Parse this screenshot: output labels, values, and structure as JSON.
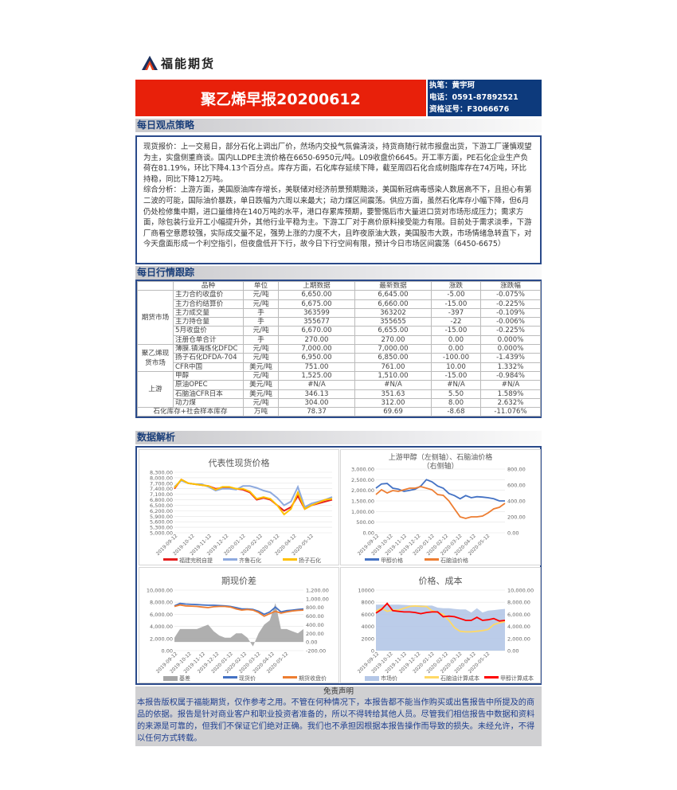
{
  "header": {
    "brand": "福能期货",
    "title": "聚乙烯早报20200612",
    "author": "执笔：黄宇珂",
    "phone": "电话：0591-87892521",
    "license": "资格证号：F3066676"
  },
  "strategy": {
    "heading": "每日观点策略",
    "paragraphs": [
      "现货报价：上一交易日，部分石化上调出厂价，然场内交投气氛偏清淡，持货商随行就市报盘出货，下游工厂谨慎观望为主，实盘侧重商谈。国内LLDPE主流价格在6650-6950元/吨。L09收盘价6645。开工率方面，PE石化企业生产负荷在81.19%，环比下降4.13个百分点。库存方面，石化库存延续下降，截至周四石化合成树脂库存在74万吨，环比持稳，同比下降12万吨。",
      "综合分析：上游方面，美国原油库存增长，美联储对经济前景预期黯淡，美国新冠病毒感染人数居高不下，且担心有第二波的可能，国际油价暴跌，单日跌幅为六周以来最大；动力煤区间震荡。供应方面，虽然石化库存小幅下降，但6月仍处检修集中期，进口量维持在140万吨的水平，港口存累库预期，要警惕后市大量进口货对市场形成压力；需求方面，除包装行业开工小幅提升外，其他行业平稳为主。下游工厂对于高价原料接受能力有限。目前处于需求淡季，下游厂商看空意愿较强，实际成交量不足，强势上涨的力度不大，且昨夜原油大跌，美国股市大跌，市场情绪急转直下，对今天盘面形成一个利空指引，但夜盘低开下行，故今日下行空间有限，预计今日市场区间震荡（6450-6675）"
    ]
  },
  "market": {
    "heading": "每日行情跟踪",
    "columns": [
      "品种",
      "单位",
      "上期数据",
      "最新数据",
      "涨跌",
      "涨跌幅"
    ],
    "groups": [
      {
        "name": "期货市场",
        "rows": [
          [
            "主力合约收盘价",
            "元/吨",
            "6,650.00",
            "6,645.00",
            "-5.00",
            "-0.075%"
          ],
          [
            "主力合约结算价",
            "元/吨",
            "6,675.00",
            "6,660.00",
            "-15.00",
            "-0.225%"
          ],
          [
            "主力成交量",
            "手",
            "363599",
            "363202",
            "-397",
            "-0.109%"
          ],
          [
            "主力持仓量",
            "手",
            "355677",
            "355655",
            "-22",
            "-0.006%"
          ],
          [
            "5月收盘价",
            "元/吨",
            "6,670.00",
            "6,655.00",
            "-15.00",
            "-0.225%"
          ],
          [
            "注册仓单合计",
            "手",
            "270.00",
            "270.00",
            "0.00",
            "0.000%"
          ]
        ]
      },
      {
        "name": "聚乙烯现货市场",
        "rows": [
          [
            "薄膜.镇海炼化DFDC",
            "元/吨",
            "7,000.00",
            "7,000.00",
            "0.00",
            "0.000%"
          ],
          [
            "扬子石化DFDA-704",
            "元/吨",
            "6,950.00",
            "6,850.00",
            "-100.00",
            "-1.439%"
          ],
          [
            "CFR中国",
            "美元/吨",
            "751.00",
            "761.00",
            "10.00",
            "1.332%"
          ]
        ]
      },
      {
        "name": "上游",
        "rows": [
          [
            "甲醇",
            "元/吨",
            "1,525.00",
            "1,510.00",
            "-15.00",
            "-0.984%"
          ],
          [
            "原油OPEC",
            "美元/吨",
            "#N/A",
            "#N/A",
            "#N/A",
            "#N/A"
          ],
          [
            "石脑油CFR日本",
            "美元/吨",
            "346.13",
            "351.63",
            "5.50",
            "1.589%"
          ],
          [
            "动力煤",
            "元/吨",
            "304.00",
            "312.00",
            "8.00",
            "2.632%"
          ]
        ]
      }
    ],
    "footer_row": [
      "石化库存+社会样本库存",
      "万吨",
      "78.37",
      "69.69",
      "-8.68",
      "-11.076%"
    ]
  },
  "analysis": {
    "heading": "数据解析"
  },
  "chart_data": [
    {
      "type": "line",
      "title": "代表性现货价格",
      "x_ticks": [
        "2019-09-12",
        "2019-10-12",
        "2019-11-12",
        "2019-12-12",
        "2020-01-12",
        "2020-02-12",
        "2020-03-12",
        "2020-04-12",
        "2020-05-12"
      ],
      "ylim": [
        5000,
        8300
      ],
      "y_ticks": [
        "5,000.00",
        "5,300.00",
        "5,600.00",
        "5,900.00",
        "6,200.00",
        "6,500.00",
        "6,800.00",
        "7,100.00",
        "7,400.00",
        "7,700.00",
        "8,000.00",
        "8,300.00"
      ],
      "series": [
        {
          "name": "福建完税自提",
          "color": "#e51c1c",
          "axis": "left",
          "values": [
            7400,
            7900,
            7700,
            7650,
            7600,
            7550,
            7400,
            7450,
            7450,
            7400,
            7350,
            7200,
            6800,
            6900,
            6800,
            6500,
            6200,
            6400,
            7000,
            6300,
            6500,
            6600,
            6700,
            6800
          ]
        },
        {
          "name": "齐鲁石化",
          "color": "#8eaadf",
          "axis": "left",
          "values": [
            7500,
            7850,
            7700,
            7650,
            7650,
            7500,
            7300,
            7400,
            7400,
            7350,
            7550,
            7550,
            7450,
            7300,
            7200,
            6900,
            6500,
            6700,
            7500,
            6400,
            6600,
            6700,
            6800,
            6950
          ]
        },
        {
          "name": "扬子石化",
          "color": "#ffc000",
          "axis": "left",
          "values": [
            7450,
            7900,
            7700,
            7650,
            7600,
            7550,
            7350,
            7500,
            7500,
            7400,
            7400,
            7250,
            6850,
            6950,
            6850,
            6500,
            6000,
            6300,
            7200,
            6300,
            6500,
            6650,
            6800,
            6850
          ]
        }
      ]
    },
    {
      "type": "line",
      "title": "上游甲醇（左侧轴）、石脑油价格（右侧轴）",
      "x_ticks": [
        "2019-09-12",
        "2019-10-12",
        "2019-11-12",
        "2019-12-12",
        "2020-01-12",
        "2020-02-12",
        "2020-03-12",
        "2020-04-12",
        "2020-05-12"
      ],
      "ylim": [
        0,
        3000
      ],
      "y_ticks": [
        "0.00",
        "500.00",
        "1,000.00",
        "1,500.00",
        "2,000.00",
        "2,500.00",
        "3,000.00"
      ],
      "y2lim": [
        0,
        800
      ],
      "y2_ticks": [
        "0.00",
        "200.00",
        "400.00",
        "600.00",
        "800.00"
      ],
      "series": [
        {
          "name": "甲醇价格",
          "color": "#4472c4",
          "axis": "left",
          "values": [
            2100,
            2300,
            2320,
            2100,
            2050,
            1950,
            2000,
            2050,
            2200,
            2500,
            2400,
            2200,
            2100,
            1850,
            1750,
            1600,
            1750,
            1650,
            1700,
            1680,
            1650,
            1600,
            1500,
            1500
          ]
        },
        {
          "name": "石脑油价格",
          "color": "#ed7d31",
          "axis": "right",
          "values": [
            480,
            540,
            500,
            530,
            520,
            540,
            560,
            560,
            580,
            560,
            540,
            480,
            470,
            400,
            300,
            200,
            180,
            200,
            200,
            210,
            250,
            300,
            320,
            370
          ]
        }
      ]
    },
    {
      "type": "line",
      "title": "期现价差",
      "x_ticks": [
        "2019-09-12",
        "2019-10-12",
        "2019-11-12",
        "2019-12-12",
        "2020-01-12",
        "2020-02-12",
        "2020-03-12",
        "2020-04-12",
        "2020-05-12"
      ],
      "ylim": [
        0,
        10000
      ],
      "y_ticks": [
        "0.00",
        "2,000.00",
        "4,000.00",
        "6,000.00",
        "8,000.00",
        "10,000.00"
      ],
      "y2lim": [
        -200,
        1200
      ],
      "y2_ticks": [
        "-200.00",
        "0.00",
        "200.00",
        "400.00",
        "600.00",
        "800.00",
        "1,000.00",
        "1,200.00"
      ],
      "series": [
        {
          "name": "基差",
          "color": "#a6a6a6",
          "axis": "right",
          "kind": "area",
          "values": [
            100,
            300,
            300,
            300,
            300,
            350,
            400,
            250,
            150,
            100,
            100,
            200,
            200,
            100,
            -100,
            200,
            400,
            500,
            900,
            300,
            300,
            250,
            200,
            300
          ]
        },
        {
          "name": "现货价",
          "color": "#4472c4",
          "axis": "left",
          "values": [
            7400,
            7800,
            7700,
            7650,
            7600,
            7550,
            7500,
            7500,
            7450,
            7400,
            7300,
            7100,
            6900,
            6900,
            6800,
            6500,
            6000,
            6400,
            7200,
            6400,
            6600,
            6700,
            6800,
            6900
          ]
        },
        {
          "name": "期货收盘价",
          "color": "#ed7d31",
          "axis": "left",
          "values": [
            7300,
            7550,
            7400,
            7350,
            7300,
            7200,
            7100,
            7250,
            7300,
            7300,
            7200,
            6900,
            6700,
            6800,
            6700,
            6300,
            5700,
            6100,
            6500,
            6200,
            6400,
            6550,
            6650,
            6700
          ]
        }
      ]
    },
    {
      "type": "line",
      "title": "价格、成本",
      "x_ticks": [
        "2019-09-12",
        "2019-10-12",
        "2019-11-12",
        "2019-12-12",
        "2020-01-12",
        "2020-02-12",
        "2020-03-12",
        "2020-04-12",
        "2020-05-12"
      ],
      "ylim": [
        0,
        10000
      ],
      "y_ticks": [
        "0",
        "2000",
        "4000",
        "6000",
        "8000",
        "10000"
      ],
      "y2lim": [
        0,
        10000
      ],
      "y2_ticks": [
        "0.00",
        "2,000.00",
        "4,000.00",
        "6,000.00",
        "8,000.00",
        "10,000.00"
      ],
      "series": [
        {
          "name": "市场价",
          "color": "#b4c7e7",
          "axis": "left",
          "kind": "area",
          "values": [
            7600,
            7600,
            7600,
            7600,
            7600,
            7550,
            7500,
            7500,
            7500,
            7450,
            7450,
            7100,
            7000,
            7000,
            6900,
            6800,
            6800,
            6300,
            7000,
            6300,
            6600,
            6700,
            6800,
            6900
          ]
        },
        {
          "name": "石脑油计算成本",
          "color": "#ffd966",
          "axis": "left",
          "values": [
            6500,
            7000,
            6500,
            6700,
            6700,
            7000,
            7300,
            7400,
            7300,
            7300,
            6600,
            6300,
            6000,
            5000,
            3800,
            3200,
            3100,
            3100,
            3200,
            3300,
            3500,
            4300,
            4600,
            4800
          ]
        },
        {
          "name": "甲醇计算成本",
          "color": "#ff0000",
          "axis": "left",
          "values": [
            6200,
            6800,
            7800,
            6600,
            6500,
            6400,
            6400,
            6300,
            6100,
            6300,
            6400,
            6400,
            5600,
            5700,
            5600,
            5300,
            5000,
            5000,
            5500,
            5000,
            5100,
            5300,
            4900,
            5000
          ]
        }
      ]
    }
  ],
  "disclaimer": {
    "heading": "免责声明",
    "text": "本报告版权属于福能期货，仅作参考之用。不管在何种情况下，本报告都不能当作购买或出售报告中所提及的商品的依据。报告是针对商业客户和职业投资者准备的，所以不得转给其他人员。尽管我们相信报告中数据和资料的来源是可靠的，但我们不保证它们绝对正确。我们也不承担因根据本报告操作而导致的损失。未经允许，不得以任何方式转载。"
  }
}
